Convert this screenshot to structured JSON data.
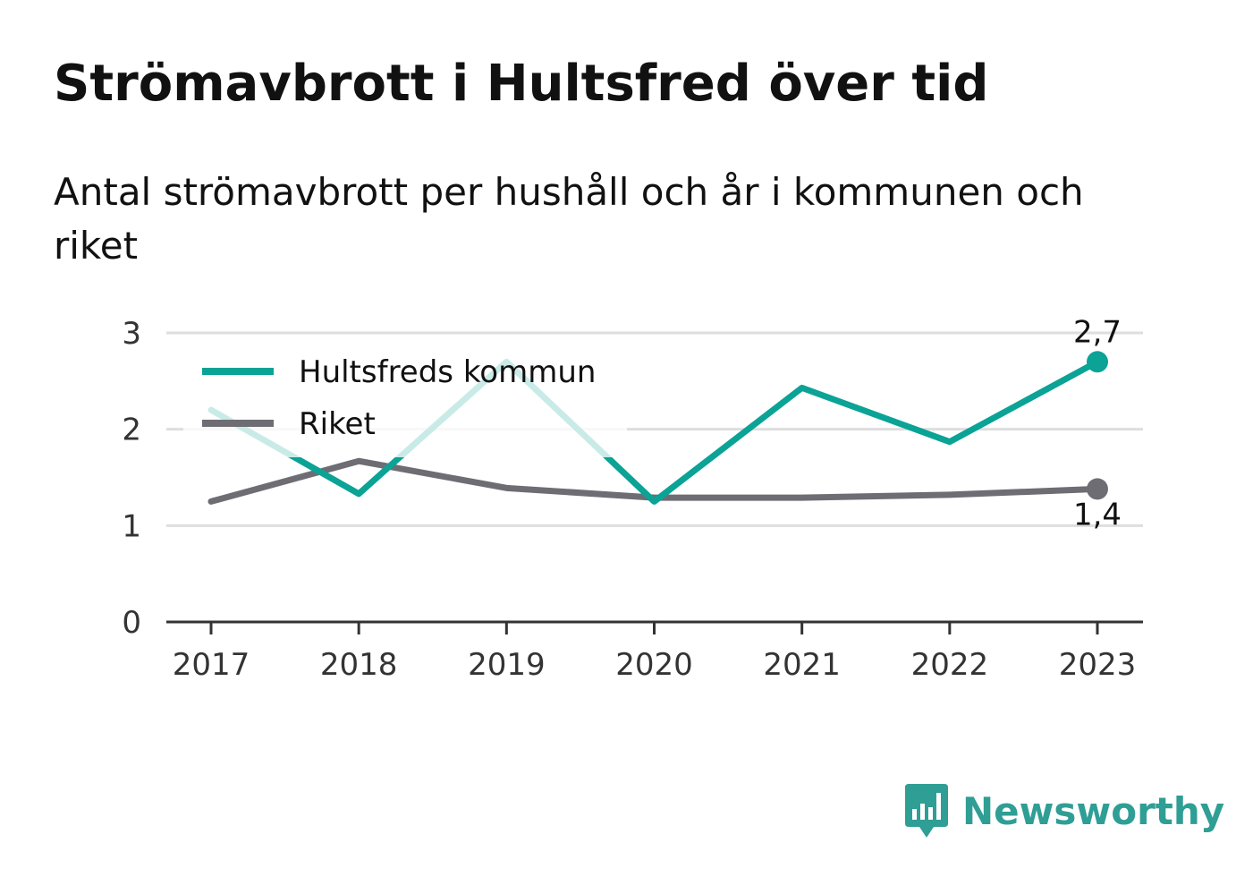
{
  "header": {
    "title": "Strömavbrott i Hultsfred över tid",
    "subtitle": "Antal strömavbrott per hushåll och år i kommunen och riket"
  },
  "brand": {
    "name": "Newsworthy",
    "icon": "bar-chart-speech-bubble-icon",
    "color": "#2f9e95"
  },
  "chart_data": {
    "type": "line",
    "x": [
      "2017",
      "2018",
      "2019",
      "2020",
      "2021",
      "2022",
      "2023"
    ],
    "ylim": [
      0,
      3
    ],
    "yticks": [
      "0",
      "1",
      "2",
      "3"
    ],
    "grid": true,
    "legend_position": "top-left",
    "series": [
      {
        "name": "Hultsfreds kommun",
        "color": "#0aa396",
        "values": [
          2.2,
          1.33,
          2.7,
          1.25,
          2.43,
          1.87,
          2.7
        ],
        "end_label": "2,7"
      },
      {
        "name": "Riket",
        "color": "#6e6d73",
        "values": [
          1.25,
          1.67,
          1.39,
          1.29,
          1.29,
          1.32,
          1.38
        ],
        "end_label": "1,4"
      }
    ]
  }
}
